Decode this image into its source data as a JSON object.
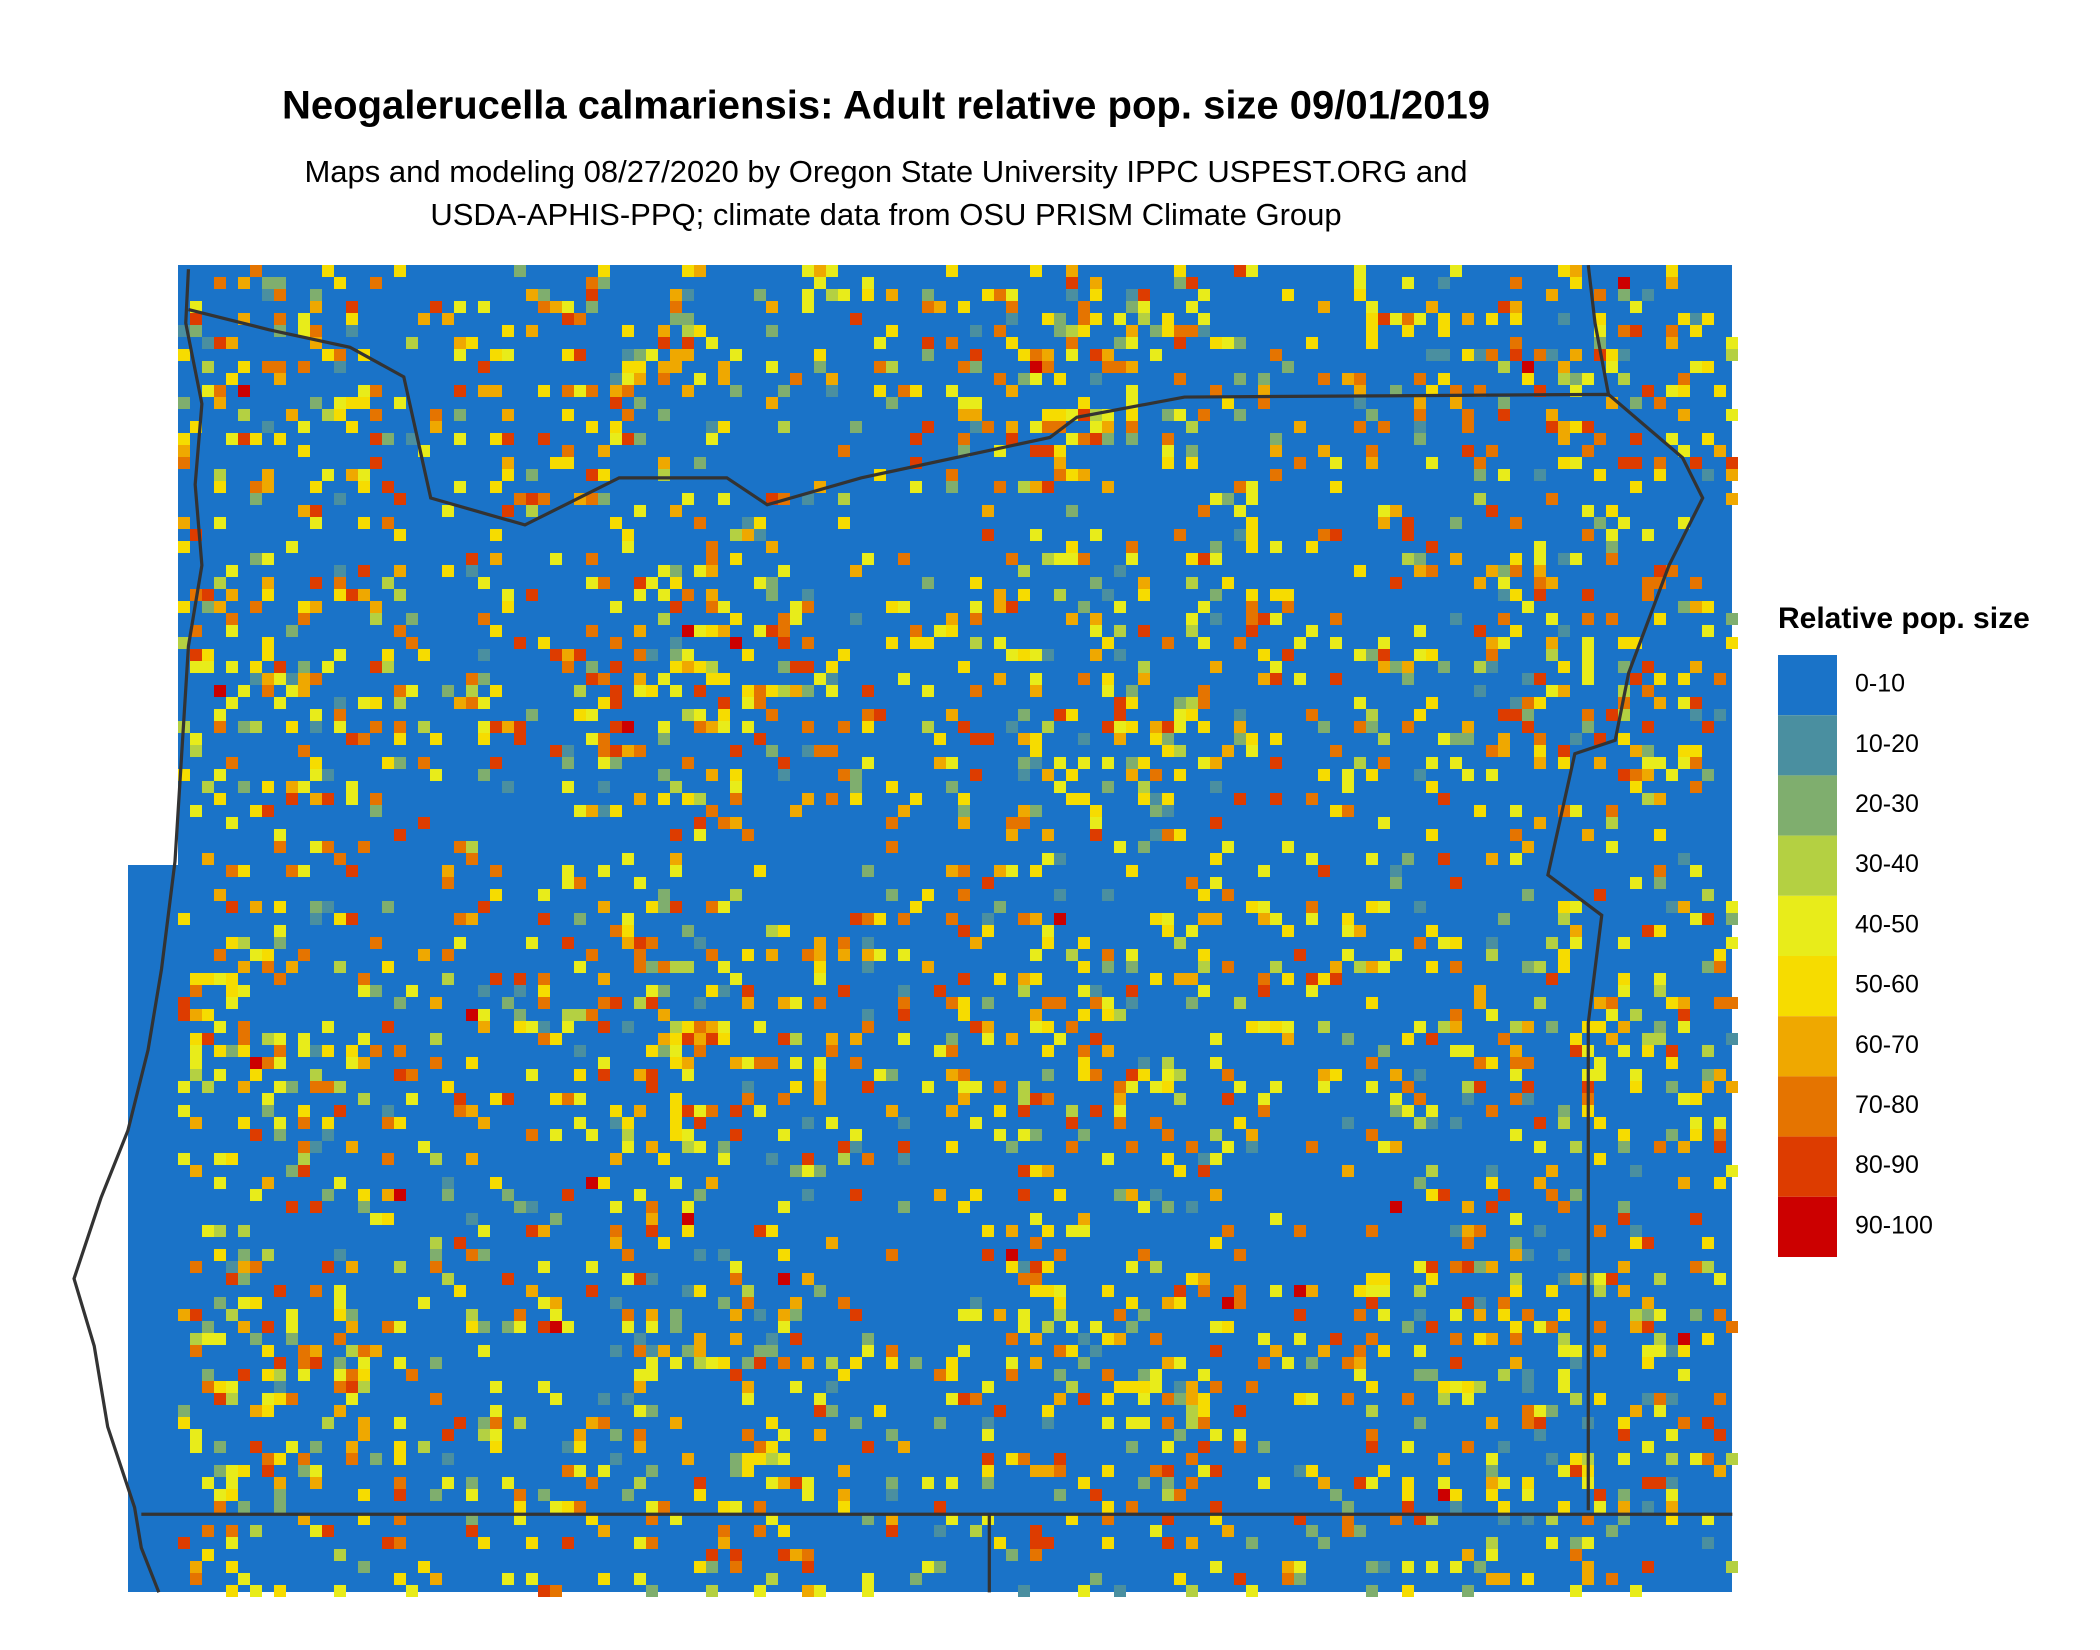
{
  "title": "Neogalerucella calmariensis: Adult relative pop. size 09/01/2019",
  "subtitle": [
    "Maps and modeling 08/27/2020 by Oregon State University IPPC USPEST.ORG and",
    "USDA-APHIS-PPQ; climate data from OSU PRISM Climate Group"
  ],
  "legend": {
    "title": "Relative pop. size",
    "items": [
      {
        "label": "0-10",
        "color": "#1a73c8"
      },
      {
        "label": "10-20",
        "color": "#4a8fa0"
      },
      {
        "label": "20-30",
        "color": "#7fae6e"
      },
      {
        "label": "30-40",
        "color": "#b4d042"
      },
      {
        "label": "40-50",
        "color": "#e8ec1a"
      },
      {
        "label": "50-60",
        "color": "#f6dc00"
      },
      {
        "label": "60-70",
        "color": "#efa800"
      },
      {
        "label": "70-80",
        "color": "#e57400"
      },
      {
        "label": "80-90",
        "color": "#dd3c00"
      },
      {
        "label": "90-100",
        "color": "#cc0000"
      }
    ]
  }
}
